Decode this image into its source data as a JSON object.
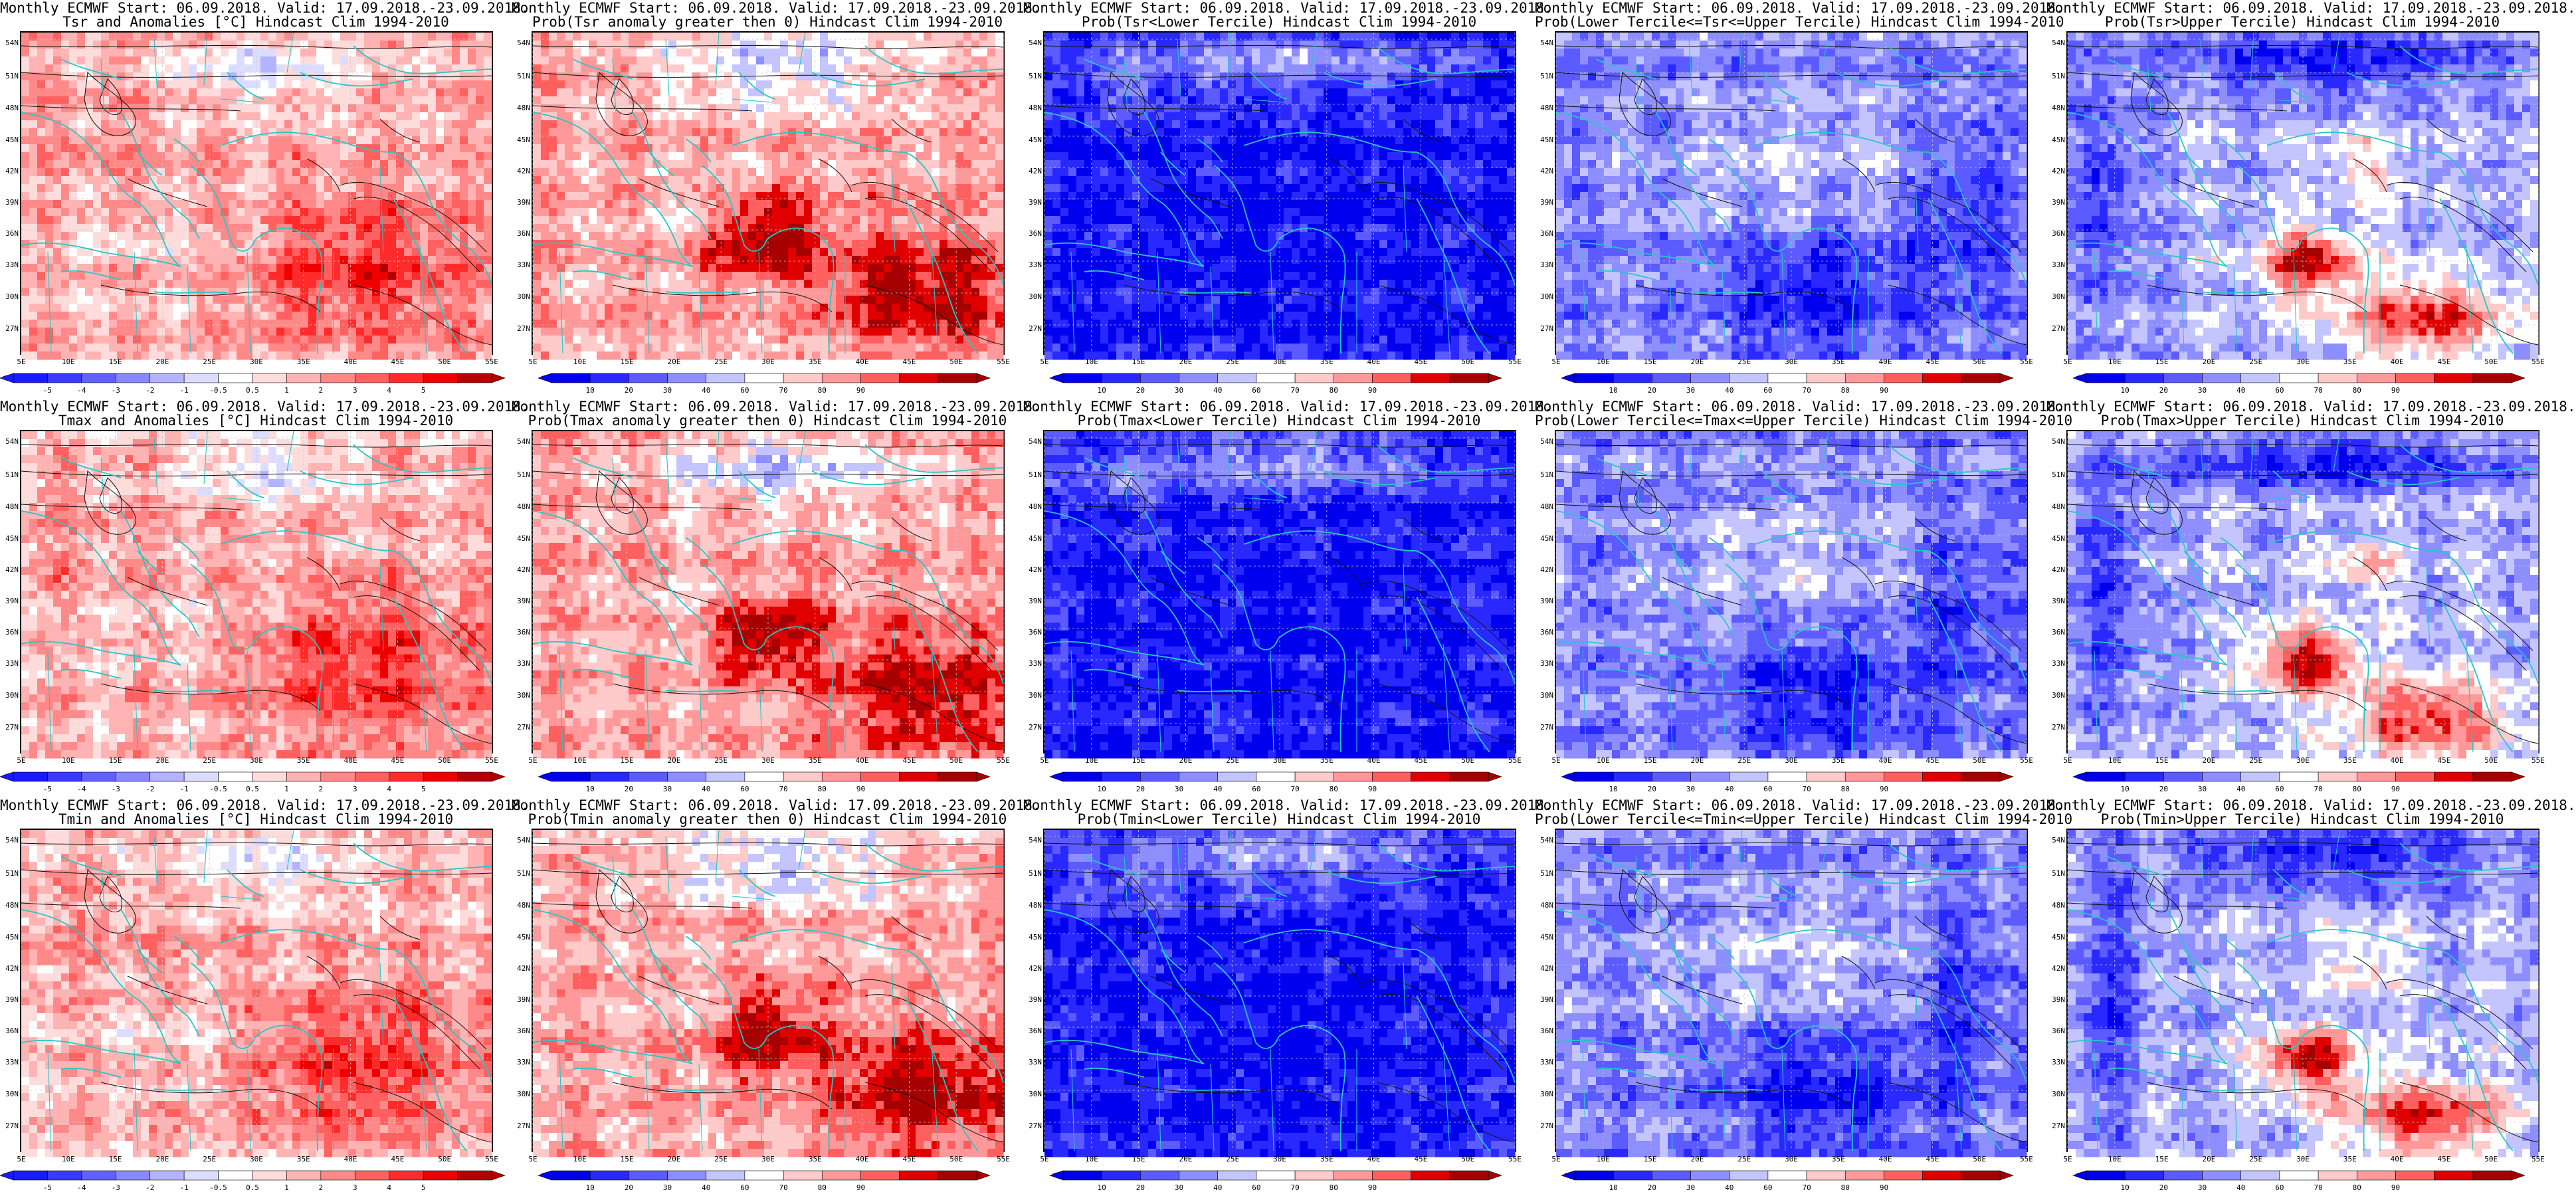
{
  "lat_labels": [
    "54N",
    "51N",
    "48N",
    "45N",
    "42N",
    "39N",
    "36N",
    "33N",
    "30N",
    "27N"
  ],
  "lon_labels": [
    "5E",
    "10E",
    "15E",
    "20E",
    "25E",
    "30E",
    "35E",
    "40E",
    "45E",
    "50E",
    "55E"
  ],
  "colors": {
    "coast": "#27c6c6",
    "contour": "#111111",
    "anom_scale": [
      "#1a1aff",
      "#3a3aff",
      "#6161ff",
      "#8989ff",
      "#b3b3ff",
      "#dcdcff",
      "#ffffff",
      "#ffdcdc",
      "#ffb3b3",
      "#ff8989",
      "#ff6161",
      "#ff2b2b",
      "#ee0000",
      "#b40000"
    ],
    "prob_scale": [
      "#0000ee",
      "#2929ff",
      "#5b5bff",
      "#8e8eff",
      "#c4c4ff",
      "#ffffff",
      "#ffcaca",
      "#ff9898",
      "#ff5f5f",
      "#e00000",
      "#a60000"
    ]
  },
  "legends": {
    "anomaly": [
      "-5",
      "-4",
      "-3",
      "-2",
      "-1",
      "-0.5",
      "0.5",
      "1",
      "2",
      "3",
      "4",
      "5"
    ],
    "probability": [
      "10",
      "20",
      "30",
      "40",
      "60",
      "70",
      "80",
      "90"
    ]
  },
  "panels": [
    {
      "t1": "Monthly ECMWF Start: 06.09.2018. Valid: 17.09.2018.-23.09.2018.",
      "t2": "Tsr and Anomalies [°C] Hindcast Clim 1994-2010",
      "kind": "anomaly",
      "style": "anom"
    },
    {
      "t1": "Monthly ECMWF Start: 06.09.2018. Valid: 17.09.2018.-23.09.2018.",
      "t2": "Prob(Tsr anomaly greater then 0) Hindcast Clim 1994-2010",
      "kind": "probability",
      "style": "warm"
    },
    {
      "t1": "Monthly ECMWF Start: 06.09.2018. Valid: 17.09.2018.-23.09.2018.",
      "t2": "Prob(Tsr<Lower Tercile) Hindcast Clim 1994-2010",
      "kind": "probability",
      "style": "blue"
    },
    {
      "t1": "Monthly ECMWF Start: 06.09.2018. Valid: 17.09.2018.-23.09.2018.",
      "t2": "Prob(Lower Tercile<=Tsr<=Upper Tercile) Hindcast Clim 1994-2010",
      "kind": "probability",
      "style": "mixblue"
    },
    {
      "t1": "Monthly ECMWF Start: 06.09.2018. Valid: 17.09.2018.-23.09.2018.",
      "t2": "Prob(Tsr>Upper Tercile) Hindcast Clim 1994-2010",
      "kind": "probability",
      "style": "upper"
    },
    {
      "t1": "Monthly ECMWF Start: 06.09.2018. Valid: 17.09.2018.-23.09.2018.",
      "t2": "Tmax and Anomalies [°C] Hindcast Clim 1994-2010",
      "kind": "anomaly",
      "style": "anom"
    },
    {
      "t1": "Monthly ECMWF Start: 06.09.2018. Valid: 17.09.2018.-23.09.2018.",
      "t2": "Prob(Tmax anomaly greater then 0) Hindcast Clim 1994-2010",
      "kind": "probability",
      "style": "warm"
    },
    {
      "t1": "Monthly ECMWF Start: 06.09.2018. Valid: 17.09.2018.-23.09.2018.",
      "t2": "Prob(Tmax<Lower Tercile) Hindcast Clim 1994-2010",
      "kind": "probability",
      "style": "blue"
    },
    {
      "t1": "Monthly ECMWF Start: 06.09.2018. Valid: 17.09.2018.-23.09.2018.",
      "t2": "Prob(Lower Tercile<=Tmax<=Upper Tercile) Hindcast Clim 1994-2010",
      "kind": "probability",
      "style": "mixblue"
    },
    {
      "t1": "Monthly ECMWF Start: 06.09.2018. Valid: 17.09.2018.-23.09.2018.",
      "t2": "Prob(Tmax>Upper Tercile) Hindcast Clim 1994-2010",
      "kind": "probability",
      "style": "upper"
    },
    {
      "t1": "Monthly ECMWF Start: 06.09.2018. Valid: 17.09.2018.-23.09.2018.",
      "t2": "Tmin and Anomalies [°C] Hindcast Clim 1994-2010",
      "kind": "anomaly",
      "style": "anom"
    },
    {
      "t1": "Monthly ECMWF Start: 06.09.2018. Valid: 17.09.2018.-23.09.2018.",
      "t2": "Prob(Tmin anomaly greater then 0) Hindcast Clim 1994-2010",
      "kind": "probability",
      "style": "warm"
    },
    {
      "t1": "Monthly ECMWF Start: 06.09.2018. Valid: 17.09.2018.-23.09.2018.",
      "t2": "Prob(Tmin<Lower Tercile) Hindcast Clim 1994-2010",
      "kind": "probability",
      "style": "blue"
    },
    {
      "t1": "Monthly ECMWF Start: 06.09.2018. Valid: 17.09.2018.-23.09.2018.",
      "t2": "Prob(Lower Tercile<=Tmin<=Upper Tercile) Hindcast Clim 1994-2010",
      "kind": "probability",
      "style": "mixblue"
    },
    {
      "t1": "Monthly ECMWF Start: 06.09.2018. Valid: 17.09.2018.-23.09.2018.",
      "t2": "Prob(Tmin>Upper Tercile) Hindcast Clim 1994-2010",
      "kind": "probability",
      "style": "upper"
    }
  ]
}
